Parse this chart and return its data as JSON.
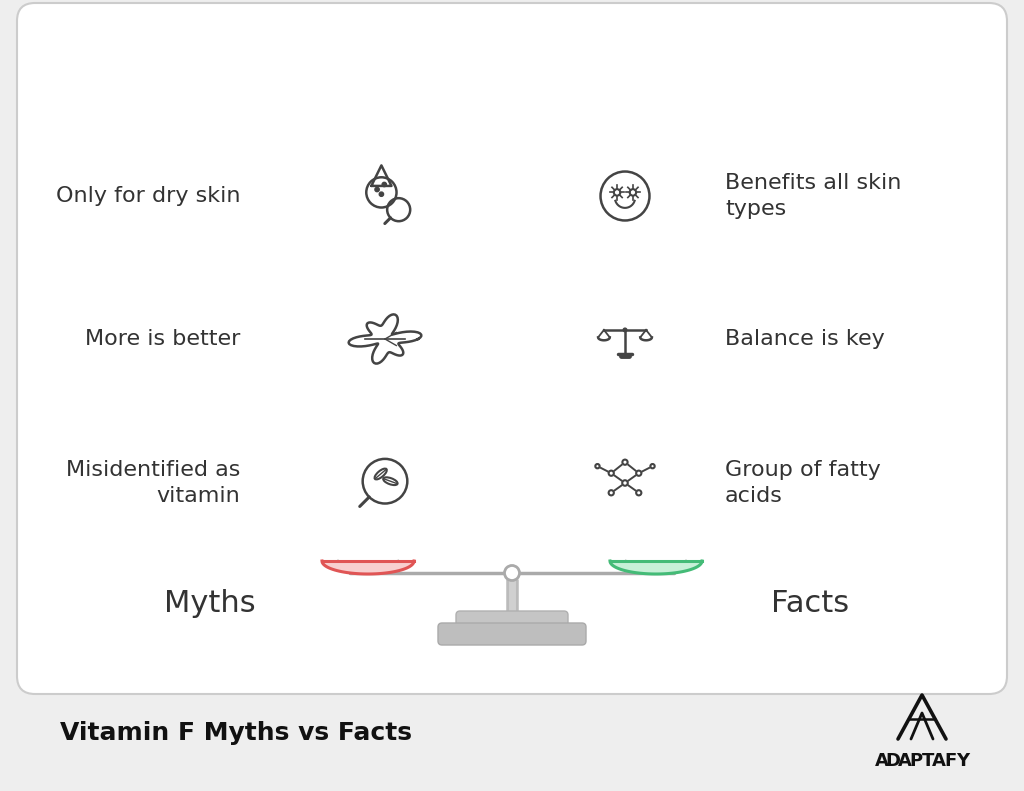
{
  "title": "Vitamin F Myths vs Facts",
  "brand": "ADAPTAFY",
  "bg_outer": "#eeeeee",
  "bg_inner": "#ffffff",
  "text_color": "#333333",
  "myths": [
    "Only for dry skin",
    "More is better",
    "Misidentified as\nvitamin"
  ],
  "facts": [
    "Benefits all skin\ntypes",
    "Balance is key",
    "Group of fatty\nacids"
  ],
  "myths_label": "Myths",
  "facts_label": "Facts",
  "pan_left_color": "#e05555",
  "pan_left_fill": "#f8d0d0",
  "pan_right_color": "#44bb77",
  "pan_right_fill": "#c8f0d8",
  "scale_color": "#aaaaaa",
  "icon_color": "#444444",
  "font_size_items": 16,
  "font_size_labels": 22,
  "font_size_title": 18,
  "font_size_brand": 13
}
